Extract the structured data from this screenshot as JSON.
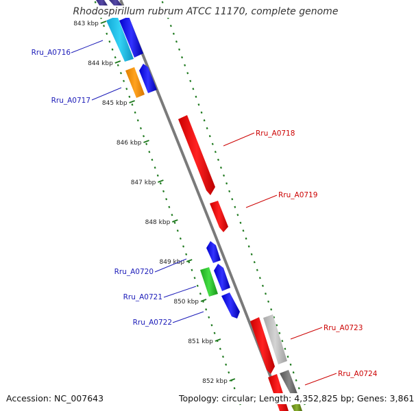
{
  "title": "Rhodospirillum rubrum ATCC 11170, complete genome",
  "footer": {
    "accession": "Accession: NC_007643",
    "topology": "Topology: circular; Length: 4,352,825 bp; Genes: 3,861"
  },
  "colors": {
    "backbone": "#7f7f7f",
    "ticks": "#1f7a1f",
    "forward_label": "#1a1ab8",
    "reverse_label": "#cc0000"
  },
  "scale": {
    "ticks": [
      {
        "label": "843 kbp"
      },
      {
        "label": "844 kbp"
      },
      {
        "label": "845 kbp"
      },
      {
        "label": "846 kbp"
      },
      {
        "label": "847 kbp"
      },
      {
        "label": "848 kbp"
      },
      {
        "label": "849 kbp"
      },
      {
        "label": "850 kbp"
      },
      {
        "label": "851 kbp"
      },
      {
        "label": "852 kbp"
      }
    ]
  },
  "genes": [
    {
      "id": "Rru_A0716",
      "strand": "forward",
      "color": "#1a1ae6",
      "highlight": "#22c8ee"
    },
    {
      "id": "Rru_A0717",
      "strand": "forward",
      "color": "#1a1ae6",
      "highlight": "#ff9a1a"
    },
    {
      "id": "Rru_A0718",
      "strand": "reverse",
      "color": "#ff1a1a"
    },
    {
      "id": "Rru_A0719",
      "strand": "reverse",
      "color": "#ff1a1a"
    },
    {
      "id": "Rru_A0720",
      "strand": "forward",
      "color": "#1a1ae6"
    },
    {
      "id": "Rru_A0721",
      "strand": "forward",
      "color": "#1a1ae6",
      "highlight": "#33cc33"
    },
    {
      "id": "Rru_A0722",
      "strand": "forward",
      "color": "#1a1ae6"
    },
    {
      "id": "Rru_A0723",
      "strand": "reverse",
      "color": "#ff1a1a",
      "highlight": "#c0c0c0"
    },
    {
      "id": "Rru_A0724",
      "strand": "reverse",
      "color": "#ff1a1a",
      "highlight": "#777777"
    }
  ]
}
